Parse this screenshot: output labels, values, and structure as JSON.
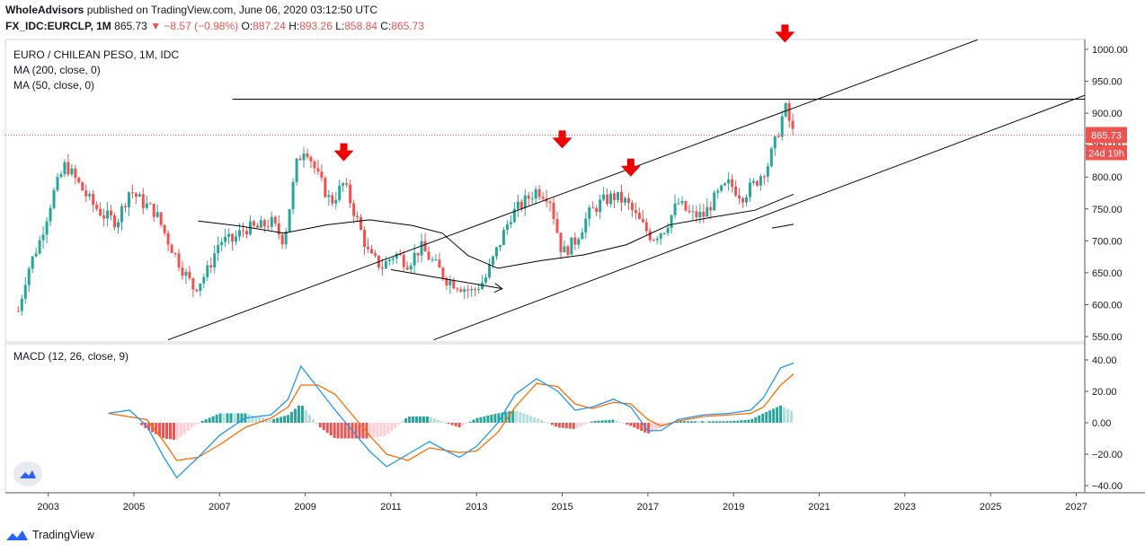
{
  "header": {
    "publisher": "WholeAdvisors",
    "published_text": " published on TradingView.com, June 06, 2020 03:12:50 UTC",
    "symbol": "FX_IDC:EURCLP, 1M",
    "last": "865.73",
    "change": "▼ −8.57 (−0.98%)",
    "o_label": "O:",
    "o_value": "887.24",
    "h_label": "H:",
    "h_value": "893.26",
    "l_label": "L:",
    "l_value": "858.84",
    "c_label": "C:",
    "c_value": "865.73"
  },
  "legend": {
    "title": "EURO / CHILEAN PESO, 1M, IDC",
    "ma200": "MA (200, close, 0)",
    "ma50": "MA (50, close, 0)",
    "macd": "MACD (12, 26, close, 9)"
  },
  "price_tag": {
    "value": "865.73",
    "countdown": "24d 19h"
  },
  "footer": {
    "brand": "TradingView"
  },
  "colors": {
    "up": "#26a69a",
    "down": "#ef5350",
    "macd": "#2196f3",
    "signal": "#ff6d00",
    "lines": "#000000"
  },
  "chart_data": [
    {
      "type": "candlestick",
      "title": "EURO / CHILEAN PESO, 1M, IDC",
      "x_ticks": [
        "2003",
        "2005",
        "2007",
        "2009",
        "2011",
        "2013",
        "2015",
        "2017",
        "2019",
        "2021",
        "2023",
        "2025",
        "2027"
      ],
      "y_ticks": [
        "1000.00",
        "950.00",
        "900.00",
        "850.00",
        "800.00",
        "750.00",
        "700.00",
        "650.00",
        "600.00",
        "550.00"
      ],
      "ylim": [
        545,
        1020
      ],
      "xlim": [
        2002.0,
        2027.2
      ],
      "close_path": [
        [
          2002.3,
          590
        ],
        [
          2002.5,
          650
        ],
        [
          2002.8,
          700
        ],
        [
          2003.1,
          770
        ],
        [
          2003.4,
          820
        ],
        [
          2003.7,
          790
        ],
        [
          2004.0,
          760
        ],
        [
          2004.3,
          740
        ],
        [
          2004.6,
          730
        ],
        [
          2004.9,
          780
        ],
        [
          2005.2,
          760
        ],
        [
          2005.5,
          745
        ],
        [
          2005.8,
          700
        ],
        [
          2006.1,
          660
        ],
        [
          2006.4,
          625
        ],
        [
          2006.7,
          650
        ],
        [
          2007.0,
          700
        ],
        [
          2007.3,
          700
        ],
        [
          2007.6,
          720
        ],
        [
          2007.9,
          720
        ],
        [
          2008.2,
          730
        ],
        [
          2008.5,
          700
        ],
        [
          2008.8,
          820
        ],
        [
          2009.0,
          850
        ],
        [
          2009.3,
          800
        ],
        [
          2009.6,
          760
        ],
        [
          2009.9,
          790
        ],
        [
          2010.2,
          735
        ],
        [
          2010.5,
          675
        ],
        [
          2010.8,
          660
        ],
        [
          2011.1,
          680
        ],
        [
          2011.4,
          665
        ],
        [
          2011.7,
          690
        ],
        [
          2012.0,
          665
        ],
        [
          2012.3,
          640
        ],
        [
          2012.6,
          630
        ],
        [
          2012.9,
          620
        ],
        [
          2013.2,
          640
        ],
        [
          2013.5,
          690
        ],
        [
          2013.8,
          740
        ],
        [
          2014.1,
          760
        ],
        [
          2014.4,
          780
        ],
        [
          2014.7,
          770
        ],
        [
          2015.0,
          680
        ],
        [
          2015.3,
          700
        ],
        [
          2015.6,
          740
        ],
        [
          2015.9,
          760
        ],
        [
          2016.2,
          770
        ],
        [
          2016.5,
          760
        ],
        [
          2016.8,
          730
        ],
        [
          2017.1,
          705
        ],
        [
          2017.4,
          720
        ],
        [
          2017.7,
          760
        ],
        [
          2018.0,
          740
        ],
        [
          2018.3,
          740
        ],
        [
          2018.6,
          770
        ],
        [
          2018.9,
          790
        ],
        [
          2019.2,
          770
        ],
        [
          2019.5,
          790
        ],
        [
          2019.8,
          820
        ],
        [
          2020.0,
          860
        ],
        [
          2020.2,
          910
        ],
        [
          2020.4,
          866
        ]
      ],
      "ma_series": [
        {
          "name": "MA (50, close, 0)",
          "points": [
            [
              2006.5,
              731
            ],
            [
              2007.5,
              723
            ],
            [
              2008.5,
              712
            ],
            [
              2009.5,
              725
            ],
            [
              2010.5,
              733
            ],
            [
              2011.5,
              724
            ],
            [
              2012.2,
              712
            ],
            [
              2012.8,
              677
            ],
            [
              2013.5,
              657
            ],
            [
              2014.5,
              669
            ],
            [
              2015.5,
              678
            ],
            [
              2016.5,
              694
            ],
            [
              2017.5,
              725
            ],
            [
              2018.5,
              737
            ],
            [
              2019.5,
              748
            ],
            [
              2020.4,
              773
            ]
          ]
        },
        {
          "name": "MA (200, close, 0)",
          "points": [
            [
              2019.9,
              720
            ],
            [
              2020.4,
              726
            ]
          ]
        }
      ],
      "lines": [
        {
          "name": "upper-channel",
          "points": [
            [
              2005.8,
              545
            ],
            [
              2024.7,
              1015
            ]
          ]
        },
        {
          "name": "lower-channel",
          "points": [
            [
              2012.0,
              545
            ],
            [
              2027.2,
              928
            ]
          ]
        },
        {
          "name": "horizontal-resistance",
          "points": [
            [
              2007.3,
              922
            ],
            [
              2027.2,
              922
            ]
          ]
        },
        {
          "name": "arrow-line",
          "points": [
            [
              2011.0,
              655
            ],
            [
              2013.6,
              625
            ]
          ]
        }
      ],
      "markers": [
        {
          "type": "down-arrow",
          "x": 2009.9,
          "y": 836
        },
        {
          "type": "down-arrow",
          "x": 2015.0,
          "y": 856
        },
        {
          "type": "down-arrow",
          "x": 2016.6,
          "y": 812
        },
        {
          "type": "down-arrow",
          "x": 2020.2,
          "y": 1022
        }
      ],
      "last_price": 865.73
    },
    {
      "type": "macd",
      "title": "MACD (12, 26, close, 9)",
      "y_ticks": [
        "40.00",
        "20.00",
        "0.00",
        "−20.00",
        "−40.00"
      ],
      "ylim": [
        -44,
        44
      ],
      "macd": [
        [
          2004.4,
          6
        ],
        [
          2004.9,
          8
        ],
        [
          2005.3,
          -2
        ],
        [
          2005.7,
          -22
        ],
        [
          2006.0,
          -35
        ],
        [
          2006.5,
          -22
        ],
        [
          2007.0,
          -8
        ],
        [
          2007.6,
          3
        ],
        [
          2008.2,
          5
        ],
        [
          2008.6,
          15
        ],
        [
          2008.9,
          36
        ],
        [
          2009.3,
          22
        ],
        [
          2009.7,
          8
        ],
        [
          2010.1,
          -5
        ],
        [
          2010.5,
          -18
        ],
        [
          2010.9,
          -28
        ],
        [
          2011.4,
          -20
        ],
        [
          2011.9,
          -12
        ],
        [
          2012.3,
          -18
        ],
        [
          2012.6,
          -22
        ],
        [
          2013.0,
          -15
        ],
        [
          2013.5,
          0
        ],
        [
          2013.9,
          18
        ],
        [
          2014.4,
          28
        ],
        [
          2014.9,
          20
        ],
        [
          2015.3,
          8
        ],
        [
          2015.7,
          10
        ],
        [
          2016.2,
          15
        ],
        [
          2016.6,
          10
        ],
        [
          2017.0,
          -5
        ],
        [
          2017.3,
          -5
        ],
        [
          2017.7,
          2
        ],
        [
          2018.3,
          5
        ],
        [
          2018.9,
          6
        ],
        [
          2019.4,
          8
        ],
        [
          2019.7,
          16
        ],
        [
          2020.1,
          35
        ],
        [
          2020.4,
          38
        ]
      ],
      "signal": [
        [
          2004.4,
          6
        ],
        [
          2005.3,
          2
        ],
        [
          2005.7,
          -12
        ],
        [
          2006.0,
          -24
        ],
        [
          2006.5,
          -22
        ],
        [
          2007.0,
          -14
        ],
        [
          2007.6,
          -3
        ],
        [
          2008.2,
          3
        ],
        [
          2008.6,
          10
        ],
        [
          2008.9,
          24
        ],
        [
          2009.3,
          24
        ],
        [
          2009.7,
          18
        ],
        [
          2010.1,
          5
        ],
        [
          2010.5,
          -8
        ],
        [
          2010.9,
          -20
        ],
        [
          2011.4,
          -24
        ],
        [
          2011.9,
          -16
        ],
        [
          2012.6,
          -19
        ],
        [
          2013.0,
          -18
        ],
        [
          2013.5,
          -6
        ],
        [
          2013.9,
          10
        ],
        [
          2014.4,
          25
        ],
        [
          2014.9,
          23
        ],
        [
          2015.3,
          12
        ],
        [
          2015.7,
          9
        ],
        [
          2016.2,
          13
        ],
        [
          2016.6,
          12
        ],
        [
          2017.0,
          2
        ],
        [
          2017.3,
          -2
        ],
        [
          2017.7,
          1
        ],
        [
          2018.3,
          4
        ],
        [
          2018.9,
          5
        ],
        [
          2019.4,
          6
        ],
        [
          2019.7,
          10
        ],
        [
          2020.1,
          24
        ],
        [
          2020.4,
          31
        ]
      ]
    }
  ]
}
